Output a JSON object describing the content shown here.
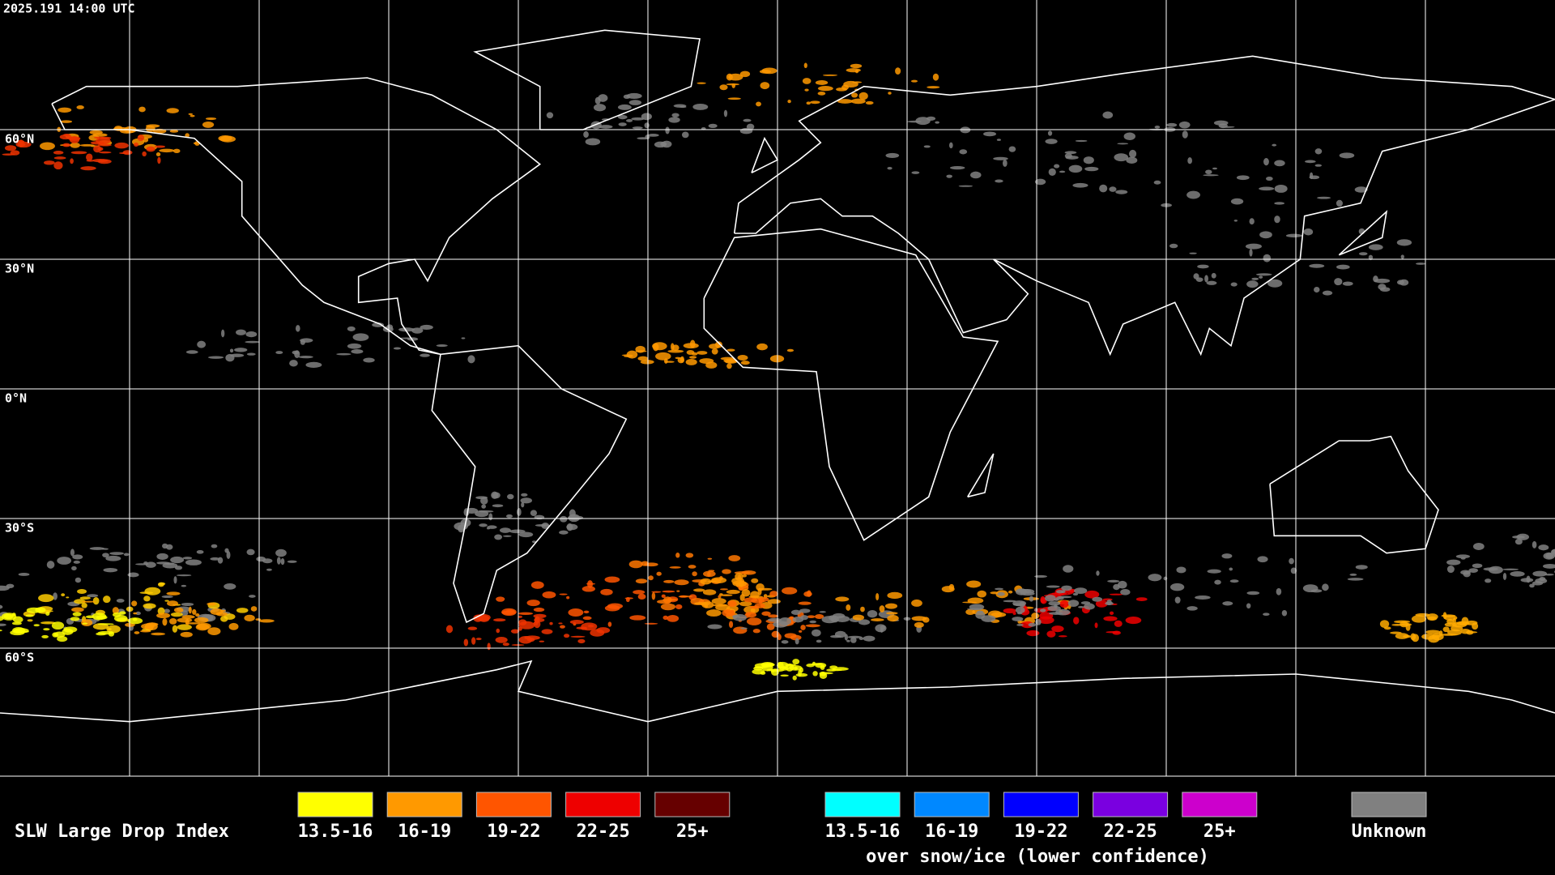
{
  "timestamp": "2025.191 14:00 UTC",
  "latitude_labels": [
    "60°N",
    "30°N",
    "0°N",
    "30°S",
    "60°S"
  ],
  "legend": {
    "title": "SLW Large Drop Index",
    "items": [
      {
        "label": "13.5-16",
        "color": "#ffff00"
      },
      {
        "label": "16-19",
        "color": "#ff9900"
      },
      {
        "label": "19-22",
        "color": "#ff5500"
      },
      {
        "label": "22-25",
        "color": "#ee0000"
      },
      {
        "label": "25+",
        "color": "#660000"
      }
    ],
    "snow_items": [
      {
        "label": "13.5-16",
        "color": "#00ffff"
      },
      {
        "label": "16-19",
        "color": "#0088ff"
      },
      {
        "label": "19-22",
        "color": "#0000ff"
      },
      {
        "label": "22-25",
        "color": "#7a00e0"
      },
      {
        "label": "25+",
        "color": "#cc00cc"
      }
    ],
    "snow_caption": "over snow/ice (lower confidence)",
    "unknown": {
      "label": "Unknown",
      "color": "#808080"
    }
  }
}
